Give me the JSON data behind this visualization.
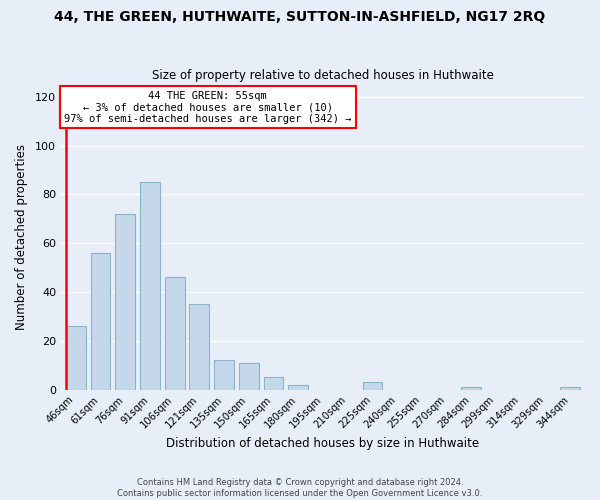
{
  "title": "44, THE GREEN, HUTHWAITE, SUTTON-IN-ASHFIELD, NG17 2RQ",
  "subtitle": "Size of property relative to detached houses in Huthwaite",
  "xlabel": "Distribution of detached houses by size in Huthwaite",
  "ylabel": "Number of detached properties",
  "bar_color": "#c5d8ea",
  "bar_edge_color": "#8ab4cc",
  "categories": [
    "46sqm",
    "61sqm",
    "76sqm",
    "91sqm",
    "106sqm",
    "121sqm",
    "135sqm",
    "150sqm",
    "165sqm",
    "180sqm",
    "195sqm",
    "210sqm",
    "225sqm",
    "240sqm",
    "255sqm",
    "270sqm",
    "284sqm",
    "299sqm",
    "314sqm",
    "329sqm",
    "344sqm"
  ],
  "values": [
    26,
    56,
    72,
    85,
    46,
    35,
    12,
    11,
    5,
    2,
    0,
    0,
    3,
    0,
    0,
    0,
    1,
    0,
    0,
    0,
    1
  ],
  "ylim": [
    0,
    125
  ],
  "yticks": [
    0,
    20,
    40,
    60,
    80,
    100,
    120
  ],
  "annotation_line1": "44 THE GREEN: 55sqm",
  "annotation_line2": "← 3% of detached houses are smaller (10)",
  "annotation_line3": "97% of semi-detached houses are larger (342) →",
  "footer1": "Contains HM Land Registry data © Crown copyright and database right 2024.",
  "footer2": "Contains public sector information licensed under the Open Government Licence v3.0.",
  "background_color": "#e8eef8",
  "grid_color": "white",
  "red_line_color": "red",
  "box_facecolor": "white",
  "box_edgecolor": "red"
}
